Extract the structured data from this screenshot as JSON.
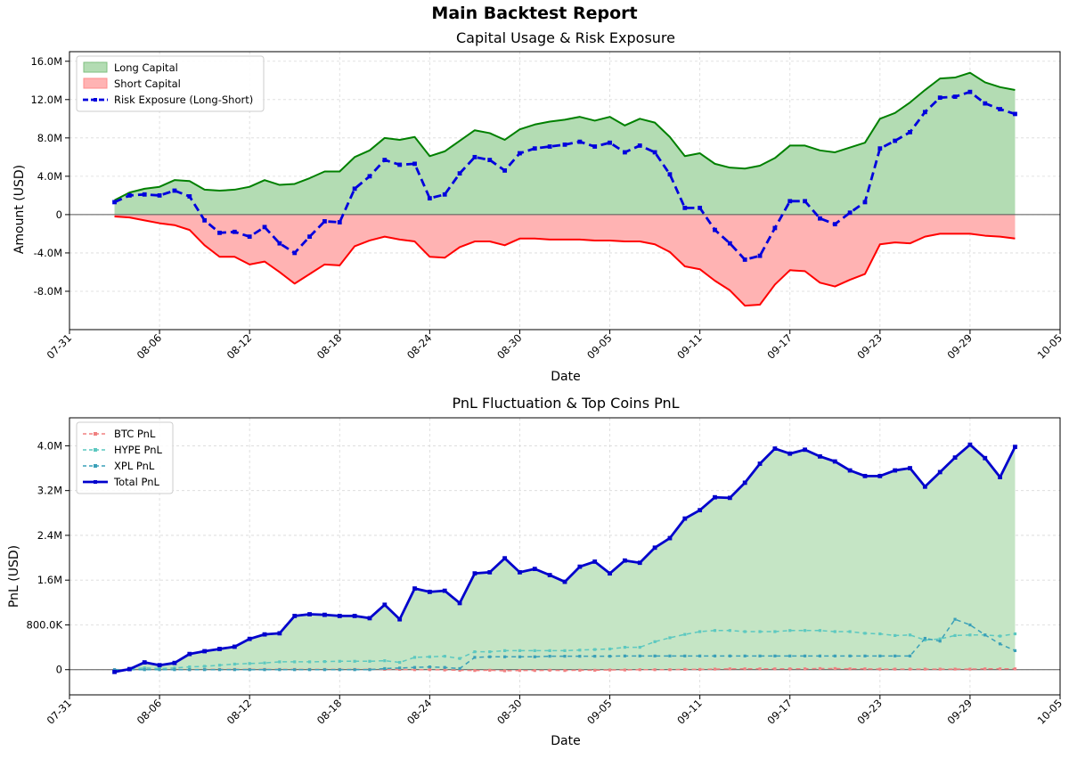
{
  "report": {
    "title": "Main Backtest Report"
  },
  "chart_data": [
    {
      "id": "capital",
      "type": "area",
      "title": "Capital Usage & Risk Exposure",
      "xlabel": "Date",
      "ylabel": "Amount (USD)",
      "xlim": [
        0,
        66
      ],
      "ylim": [
        -12000000,
        17000000
      ],
      "x_ticks": [
        0,
        6,
        12,
        18,
        24,
        30,
        36,
        42,
        48,
        54,
        60,
        66
      ],
      "x_tick_labels": [
        "07-31",
        "08-06",
        "08-12",
        "08-18",
        "08-24",
        "08-30",
        "09-05",
        "09-11",
        "09-17",
        "09-23",
        "09-29",
        "10-05"
      ],
      "y_ticks": [
        -8000000,
        -4000000,
        0,
        4000000,
        8000000,
        12000000,
        16000000
      ],
      "y_tick_labels": [
        "-8.0M",
        "-4.0M",
        "0",
        "4.0M",
        "8.0M",
        "12.0M",
        "16.0M"
      ],
      "grid": true,
      "legend_position": "upper-left",
      "legend": [
        "Long Capital",
        "Short Capital",
        "Risk Exposure (Long-Short)"
      ],
      "x_start": 3,
      "series": [
        {
          "name": "Long Capital",
          "color": "#008000",
          "fill": "#b3dcb3",
          "values": [
            1.5,
            2.3,
            2.7,
            2.9,
            3.6,
            3.5,
            2.6,
            2.5,
            2.6,
            2.9,
            3.6,
            3.1,
            3.2,
            3.8,
            4.5,
            4.5,
            6.0,
            6.7,
            8.0,
            7.8,
            8.1,
            6.1,
            6.6,
            7.7,
            8.8,
            8.5,
            7.8,
            8.9,
            9.4,
            9.7,
            9.9,
            10.2,
            9.8,
            10.2,
            9.3,
            10.0,
            9.6,
            8.1,
            6.1,
            6.4,
            5.3,
            4.9,
            4.8,
            5.1,
            5.9,
            7.2,
            7.2,
            6.7,
            6.5,
            7.0,
            7.5,
            10.0,
            10.6,
            11.7,
            13.0,
            14.2,
            14.3,
            14.8,
            13.8,
            13.3,
            13.0
          ]
        },
        {
          "name": "Short Capital",
          "color": "#ff0000",
          "fill": "#ffb3b3",
          "values": [
            -0.2,
            -0.3,
            -0.6,
            -0.9,
            -1.1,
            -1.6,
            -3.2,
            -4.4,
            -4.4,
            -5.2,
            -4.9,
            -6.0,
            -7.2,
            -6.2,
            -5.2,
            -5.3,
            -3.3,
            -2.7,
            -2.3,
            -2.6,
            -2.8,
            -4.4,
            -4.5,
            -3.4,
            -2.8,
            -2.8,
            -3.2,
            -2.5,
            -2.5,
            -2.6,
            -2.6,
            -2.6,
            -2.7,
            -2.7,
            -2.8,
            -2.8,
            -3.1,
            -3.9,
            -5.4,
            -5.7,
            -6.9,
            -7.9,
            -9.5,
            -9.4,
            -7.3,
            -5.8,
            -5.9,
            -7.1,
            -7.5,
            -6.8,
            -6.2,
            -3.1,
            -2.9,
            -3.0,
            -2.3,
            -2.0,
            -2.0,
            -2.0,
            -2.2,
            -2.3,
            -2.5
          ]
        },
        {
          "name": "Risk Exposure (Long-Short)",
          "color": "#0000dd",
          "dash": true,
          "values": [
            1.3,
            2.0,
            2.1,
            2.0,
            2.5,
            1.9,
            -0.6,
            -1.9,
            -1.8,
            -2.3,
            -1.3,
            -3.0,
            -4.0,
            -2.3,
            -0.7,
            -0.8,
            2.7,
            4.0,
            5.7,
            5.2,
            5.3,
            1.7,
            2.1,
            4.3,
            6.0,
            5.7,
            4.6,
            6.4,
            6.9,
            7.1,
            7.3,
            7.6,
            7.1,
            7.5,
            6.5,
            7.2,
            6.5,
            4.2,
            0.7,
            0.7,
            -1.6,
            -3.0,
            -4.7,
            -4.3,
            -1.4,
            1.4,
            1.4,
            -0.4,
            -1.0,
            0.2,
            1.3,
            6.9,
            7.7,
            8.6,
            10.7,
            12.2,
            12.3,
            12.8,
            11.6,
            11.0,
            10.5
          ]
        }
      ],
      "value_scale": 1000000
    },
    {
      "id": "pnl",
      "type": "line",
      "title": "PnL Fluctuation & Top Coins PnL",
      "xlabel": "Date",
      "ylabel": "PnL (USD)",
      "xlim": [
        0,
        66
      ],
      "ylim": [
        -450000,
        4500000
      ],
      "x_ticks": [
        0,
        6,
        12,
        18,
        24,
        30,
        36,
        42,
        48,
        54,
        60,
        66
      ],
      "x_tick_labels": [
        "07-31",
        "08-06",
        "08-12",
        "08-18",
        "08-24",
        "08-30",
        "09-05",
        "09-11",
        "09-17",
        "09-23",
        "09-29",
        "10-05"
      ],
      "y_ticks": [
        0,
        800000,
        1600000,
        2400000,
        3200000,
        4000000
      ],
      "y_tick_labels": [
        "0",
        "800.0K",
        "1.6M",
        "2.4M",
        "3.2M",
        "4.0M"
      ],
      "grid": true,
      "legend_position": "upper-left",
      "legend": [
        "BTC PnL",
        "HYPE PnL",
        "XPL PnL",
        "Total PnL"
      ],
      "x_start": 3,
      "series": [
        {
          "name": "BTC PnL",
          "color": "#f08080",
          "dash": true,
          "values": [
            0,
            5,
            5,
            5,
            5,
            0,
            5,
            5,
            5,
            5,
            5,
            5,
            5,
            5,
            5,
            5,
            5,
            5,
            5,
            5,
            0,
            0,
            -5,
            -10,
            -15,
            -10,
            -20,
            -15,
            -15,
            -10,
            -15,
            -10,
            -10,
            -5,
            -5,
            0,
            0,
            0,
            5,
            5,
            10,
            15,
            15,
            15,
            15,
            15,
            15,
            20,
            20,
            15,
            15,
            10,
            10,
            10,
            10,
            10,
            10,
            10,
            15,
            15,
            15
          ]
        },
        {
          "name": "HYPE PnL",
          "color": "#5cc8c0",
          "dash": true,
          "values": [
            -20,
            10,
            30,
            20,
            30,
            50,
            60,
            80,
            100,
            110,
            120,
            140,
            140,
            140,
            145,
            150,
            150,
            150,
            160,
            130,
            220,
            230,
            240,
            200,
            320,
            320,
            340,
            340,
            340,
            340,
            340,
            350,
            360,
            370,
            400,
            400,
            500,
            570,
            630,
            680,
            700,
            700,
            680,
            680,
            680,
            700,
            700,
            700,
            680,
            680,
            650,
            640,
            610,
            620,
            530,
            550,
            610,
            620,
            620,
            600,
            640
          ]
        },
        {
          "name": "XPL PnL",
          "color": "#3aa0b8",
          "dash": true,
          "values": [
            0,
            0,
            0,
            0,
            0,
            0,
            0,
            0,
            0,
            0,
            0,
            0,
            0,
            0,
            0,
            0,
            0,
            0,
            20,
            30,
            40,
            50,
            40,
            20,
            220,
            230,
            230,
            230,
            230,
            240,
            240,
            240,
            240,
            240,
            245,
            245,
            245,
            245,
            245,
            245,
            245,
            245,
            245,
            245,
            245,
            245,
            245,
            245,
            245,
            245,
            245,
            245,
            245,
            245,
            560,
            510,
            900,
            800,
            620,
            460,
            340
          ]
        },
        {
          "name": "Total PnL",
          "color": "#0000cc",
          "fill": "#c5e5c5",
          "values": [
            -40,
            10,
            130,
            80,
            120,
            280,
            330,
            370,
            410,
            550,
            630,
            650,
            960,
            990,
            980,
            960,
            960,
            920,
            1160,
            900,
            1450,
            1390,
            1410,
            1190,
            1720,
            1740,
            1990,
            1740,
            1800,
            1690,
            1570,
            1840,
            1930,
            1720,
            1950,
            1910,
            2180,
            2350,
            2700,
            2850,
            3080,
            3070,
            3340,
            3680,
            3950,
            3860,
            3930,
            3810,
            3720,
            3560,
            3460,
            3460,
            3560,
            3600,
            3270,
            3530,
            3790,
            4020,
            3780,
            3440,
            3980
          ]
        }
      ],
      "value_scale": 1000
    }
  ]
}
